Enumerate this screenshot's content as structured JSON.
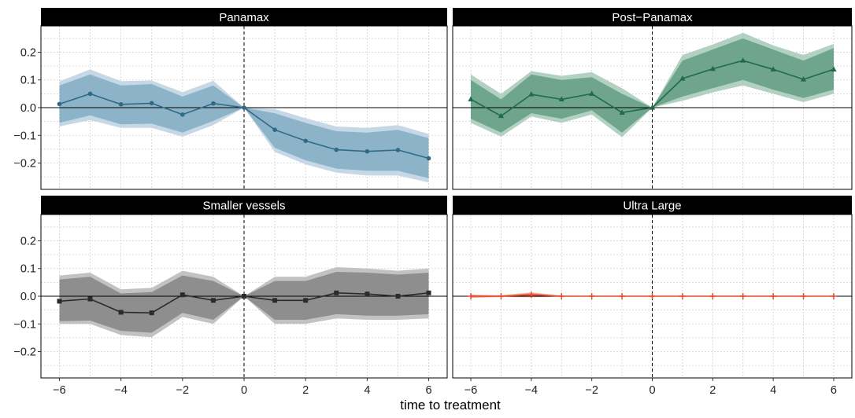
{
  "chart_data": {
    "type": "line",
    "xlabel": "time to treatment",
    "ylabel": "",
    "x_ticks": [
      -6,
      -4,
      -2,
      0,
      2,
      4,
      6
    ],
    "y_ticks": [
      -0.2,
      -0.1,
      0.0,
      0.1,
      0.2
    ],
    "y_tick_labels": [
      "−0.2",
      "−0.1",
      "0.0",
      "0.1",
      "0.2"
    ],
    "x_tick_labels": [
      "−6",
      "−4",
      "−2",
      "0",
      "2",
      "4",
      "6"
    ],
    "xlim": [
      -6.6,
      6.6
    ],
    "ylim": [
      -0.295,
      0.295
    ],
    "grid": true,
    "reference_lines": {
      "vertical_x": 0,
      "horizontal_y": 0
    },
    "x": [
      -6,
      -5,
      -4,
      -3,
      -2,
      -1,
      0,
      1,
      2,
      3,
      4,
      5,
      6
    ],
    "panels": [
      {
        "title": "Panamax",
        "color": "#2f6b86",
        "band_outer": "#c6d8e6",
        "band_inner": "#8db3c9",
        "marker": "circle",
        "estimate": [
          0.013,
          0.05,
          0.012,
          0.016,
          -0.025,
          0.015,
          0.0,
          -0.08,
          -0.12,
          -0.152,
          -0.158,
          -0.153,
          -0.183
        ],
        "ci95_low": [
          -0.068,
          -0.045,
          -0.073,
          -0.073,
          -0.105,
          -0.063,
          0.0,
          -0.16,
          -0.205,
          -0.235,
          -0.245,
          -0.245,
          -0.27
        ],
        "ci95_high": [
          0.095,
          0.138,
          0.096,
          0.098,
          0.056,
          0.097,
          0.0,
          -0.005,
          -0.038,
          -0.068,
          -0.073,
          -0.063,
          -0.095
        ],
        "ci90_low": [
          -0.055,
          -0.028,
          -0.06,
          -0.058,
          -0.09,
          -0.048,
          0.0,
          -0.145,
          -0.19,
          -0.22,
          -0.228,
          -0.228,
          -0.255
        ],
        "ci90_high": [
          0.08,
          0.12,
          0.08,
          0.085,
          0.04,
          0.08,
          0.0,
          -0.02,
          -0.055,
          -0.085,
          -0.09,
          -0.08,
          -0.11
        ]
      },
      {
        "title": "Post−Panamax",
        "color": "#1f6b4a",
        "band_outer": "#b3d1c3",
        "band_inner": "#6fa58d",
        "marker": "triangle",
        "estimate": [
          0.03,
          -0.03,
          0.048,
          0.03,
          0.05,
          -0.018,
          0.0,
          0.105,
          0.14,
          0.17,
          0.138,
          0.102,
          0.138
        ],
        "ci95_low": [
          -0.055,
          -0.105,
          -0.032,
          -0.055,
          -0.025,
          -0.107,
          0.0,
          0.025,
          0.055,
          0.08,
          0.05,
          0.02,
          0.05
        ],
        "ci95_high": [
          0.12,
          0.05,
          0.132,
          0.115,
          0.128,
          0.07,
          0.0,
          0.19,
          0.228,
          0.27,
          0.225,
          0.19,
          0.23
        ],
        "ci90_low": [
          -0.04,
          -0.09,
          -0.02,
          -0.04,
          -0.01,
          -0.09,
          0.0,
          0.04,
          0.07,
          0.1,
          0.065,
          0.035,
          0.065
        ],
        "ci90_high": [
          0.1,
          0.03,
          0.12,
          0.1,
          0.11,
          0.05,
          0.0,
          0.17,
          0.21,
          0.25,
          0.21,
          0.17,
          0.215
        ]
      },
      {
        "title": "Smaller vessels",
        "color": "#2b2b2b",
        "band_outer": "#c2c2c2",
        "band_inner": "#8e8e8e",
        "marker": "square",
        "estimate": [
          -0.018,
          -0.01,
          -0.058,
          -0.06,
          0.005,
          -0.015,
          0.0,
          -0.015,
          -0.015,
          0.012,
          0.008,
          0.0,
          0.012
        ],
        "ci95_low": [
          -0.1,
          -0.1,
          -0.14,
          -0.148,
          -0.075,
          -0.1,
          0.0,
          -0.1,
          -0.1,
          -0.08,
          -0.085,
          -0.085,
          -0.08
        ],
        "ci95_high": [
          0.075,
          0.085,
          0.025,
          0.03,
          0.092,
          0.07,
          0.0,
          0.07,
          0.07,
          0.105,
          0.1,
          0.092,
          0.1
        ],
        "ci90_low": [
          -0.09,
          -0.088,
          -0.125,
          -0.132,
          -0.06,
          -0.085,
          0.0,
          -0.085,
          -0.085,
          -0.065,
          -0.07,
          -0.07,
          -0.065
        ],
        "ci90_high": [
          0.06,
          0.07,
          0.01,
          0.015,
          0.075,
          0.055,
          0.0,
          0.055,
          0.055,
          0.088,
          0.085,
          0.078,
          0.085
        ]
      },
      {
        "title": "Ultra Large",
        "color": "#e8482b",
        "band_outer": "#f3b6a8",
        "band_inner": "#ec8a73",
        "marker": "plus",
        "estimate": [
          0.0,
          0.0,
          0.005,
          0.0,
          0.0,
          0.0,
          0.0,
          0.0,
          0.0,
          0.0,
          0.0,
          0.0,
          0.0
        ],
        "ci95_low": [
          -0.006,
          -0.003,
          -0.004,
          -0.002,
          -0.001,
          -0.001,
          0.0,
          -0.001,
          -0.001,
          -0.001,
          -0.001,
          -0.001,
          -0.001
        ],
        "ci95_high": [
          0.006,
          0.003,
          0.014,
          0.002,
          0.001,
          0.001,
          0.0,
          0.001,
          0.001,
          0.001,
          0.001,
          0.001,
          0.001
        ],
        "ci90_low": [
          -0.004,
          -0.002,
          -0.002,
          -0.001,
          -0.001,
          -0.001,
          0.0,
          -0.001,
          -0.001,
          -0.001,
          -0.001,
          -0.001,
          -0.001
        ],
        "ci90_high": [
          0.004,
          0.002,
          0.011,
          0.001,
          0.001,
          0.001,
          0.0,
          0.001,
          0.001,
          0.001,
          0.001,
          0.001,
          0.001
        ]
      }
    ]
  }
}
